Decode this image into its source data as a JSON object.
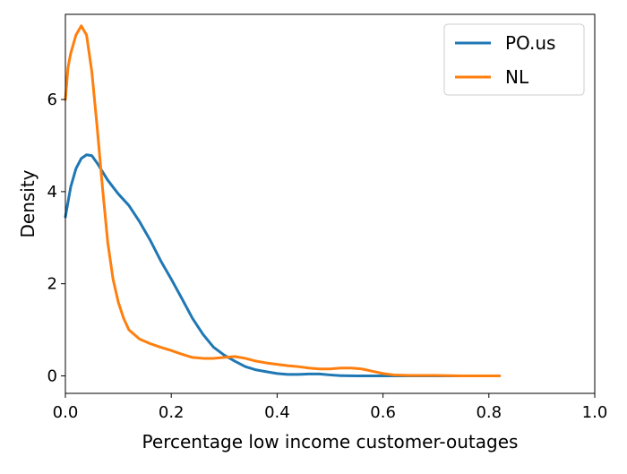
{
  "chart_data": {
    "type": "line",
    "title": "",
    "xlabel": "Percentage low income customer-outages",
    "ylabel": "Density",
    "xlim": [
      0.0,
      1.0
    ],
    "ylim": [
      -0.38,
      7.85
    ],
    "x_ticks": [
      0.0,
      0.2,
      0.4,
      0.6,
      0.8,
      1.0
    ],
    "x_tick_labels": [
      "0.0",
      "0.2",
      "0.4",
      "0.6",
      "0.8",
      "1.0"
    ],
    "y_ticks": [
      0,
      2,
      4,
      6
    ],
    "y_tick_labels": [
      "0",
      "2",
      "4",
      "6"
    ],
    "grid": false,
    "legend": {
      "position": "top-right",
      "entries": [
        "PO.us",
        "NL"
      ]
    },
    "series": [
      {
        "name": "PO.us",
        "color": "#1f77b4",
        "points": [
          [
            0.0,
            3.45
          ],
          [
            0.01,
            4.1
          ],
          [
            0.02,
            4.5
          ],
          [
            0.03,
            4.72
          ],
          [
            0.04,
            4.8
          ],
          [
            0.05,
            4.78
          ],
          [
            0.06,
            4.62
          ],
          [
            0.08,
            4.25
          ],
          [
            0.1,
            3.95
          ],
          [
            0.12,
            3.7
          ],
          [
            0.14,
            3.35
          ],
          [
            0.16,
            2.95
          ],
          [
            0.18,
            2.5
          ],
          [
            0.2,
            2.1
          ],
          [
            0.22,
            1.68
          ],
          [
            0.24,
            1.25
          ],
          [
            0.26,
            0.9
          ],
          [
            0.28,
            0.62
          ],
          [
            0.3,
            0.45
          ],
          [
            0.32,
            0.32
          ],
          [
            0.34,
            0.2
          ],
          [
            0.36,
            0.13
          ],
          [
            0.38,
            0.09
          ],
          [
            0.4,
            0.05
          ],
          [
            0.42,
            0.03
          ],
          [
            0.44,
            0.03
          ],
          [
            0.46,
            0.04
          ],
          [
            0.48,
            0.04
          ],
          [
            0.5,
            0.02
          ],
          [
            0.52,
            0.005
          ],
          [
            0.55,
            0.0
          ],
          [
            0.6,
            0.0
          ],
          [
            0.65,
            0.0
          ],
          [
            0.7,
            0.0
          ],
          [
            0.76,
            0.0
          ],
          [
            0.82,
            0.0
          ]
        ]
      },
      {
        "name": "NL",
        "color": "#ff7f0e",
        "points": [
          [
            0.0,
            6.0
          ],
          [
            0.005,
            6.7
          ],
          [
            0.01,
            7.0
          ],
          [
            0.02,
            7.4
          ],
          [
            0.03,
            7.6
          ],
          [
            0.04,
            7.4
          ],
          [
            0.05,
            6.6
          ],
          [
            0.06,
            5.4
          ],
          [
            0.07,
            4.1
          ],
          [
            0.08,
            2.9
          ],
          [
            0.09,
            2.1
          ],
          [
            0.1,
            1.6
          ],
          [
            0.11,
            1.25
          ],
          [
            0.12,
            1.0
          ],
          [
            0.14,
            0.8
          ],
          [
            0.16,
            0.7
          ],
          [
            0.18,
            0.62
          ],
          [
            0.2,
            0.55
          ],
          [
            0.22,
            0.47
          ],
          [
            0.24,
            0.4
          ],
          [
            0.26,
            0.38
          ],
          [
            0.28,
            0.38
          ],
          [
            0.3,
            0.4
          ],
          [
            0.32,
            0.42
          ],
          [
            0.34,
            0.38
          ],
          [
            0.36,
            0.32
          ],
          [
            0.38,
            0.28
          ],
          [
            0.4,
            0.25
          ],
          [
            0.42,
            0.22
          ],
          [
            0.44,
            0.2
          ],
          [
            0.46,
            0.17
          ],
          [
            0.48,
            0.15
          ],
          [
            0.5,
            0.15
          ],
          [
            0.52,
            0.17
          ],
          [
            0.54,
            0.17
          ],
          [
            0.56,
            0.15
          ],
          [
            0.58,
            0.1
          ],
          [
            0.6,
            0.05
          ],
          [
            0.62,
            0.02
          ],
          [
            0.65,
            0.01
          ],
          [
            0.7,
            0.01
          ],
          [
            0.75,
            0.0
          ],
          [
            0.82,
            0.0
          ]
        ]
      }
    ]
  }
}
